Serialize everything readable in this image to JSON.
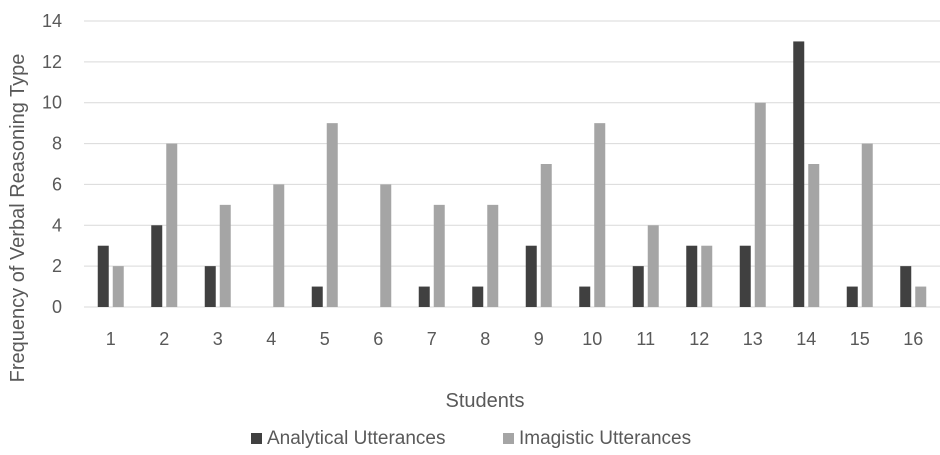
{
  "chart_data": {
    "type": "bar",
    "categories": [
      "1",
      "2",
      "3",
      "4",
      "5",
      "6",
      "7",
      "8",
      "9",
      "10",
      "11",
      "12",
      "13",
      "14",
      "15",
      "16"
    ],
    "series": [
      {
        "name": "Analytical Utterances",
        "color": "#404040",
        "values": [
          3,
          4,
          2,
          0,
          1,
          0,
          1,
          1,
          3,
          1,
          2,
          3,
          3,
          13,
          1,
          2
        ]
      },
      {
        "name": "Imagistic Utterances",
        "color": "#a5a5a5",
        "values": [
          2,
          8,
          5,
          6,
          9,
          6,
          5,
          5,
          7,
          9,
          4,
          3,
          10,
          7,
          8,
          1
        ]
      }
    ],
    "xlabel": "Students",
    "ylabel": "Frequency of  Verbal Reasoning Type",
    "ylim": [
      0,
      14
    ],
    "yticks": [
      "0",
      "2",
      "4",
      "6",
      "8",
      "10",
      "12",
      "14"
    ],
    "grid": true,
    "legend_position": "bottom"
  }
}
